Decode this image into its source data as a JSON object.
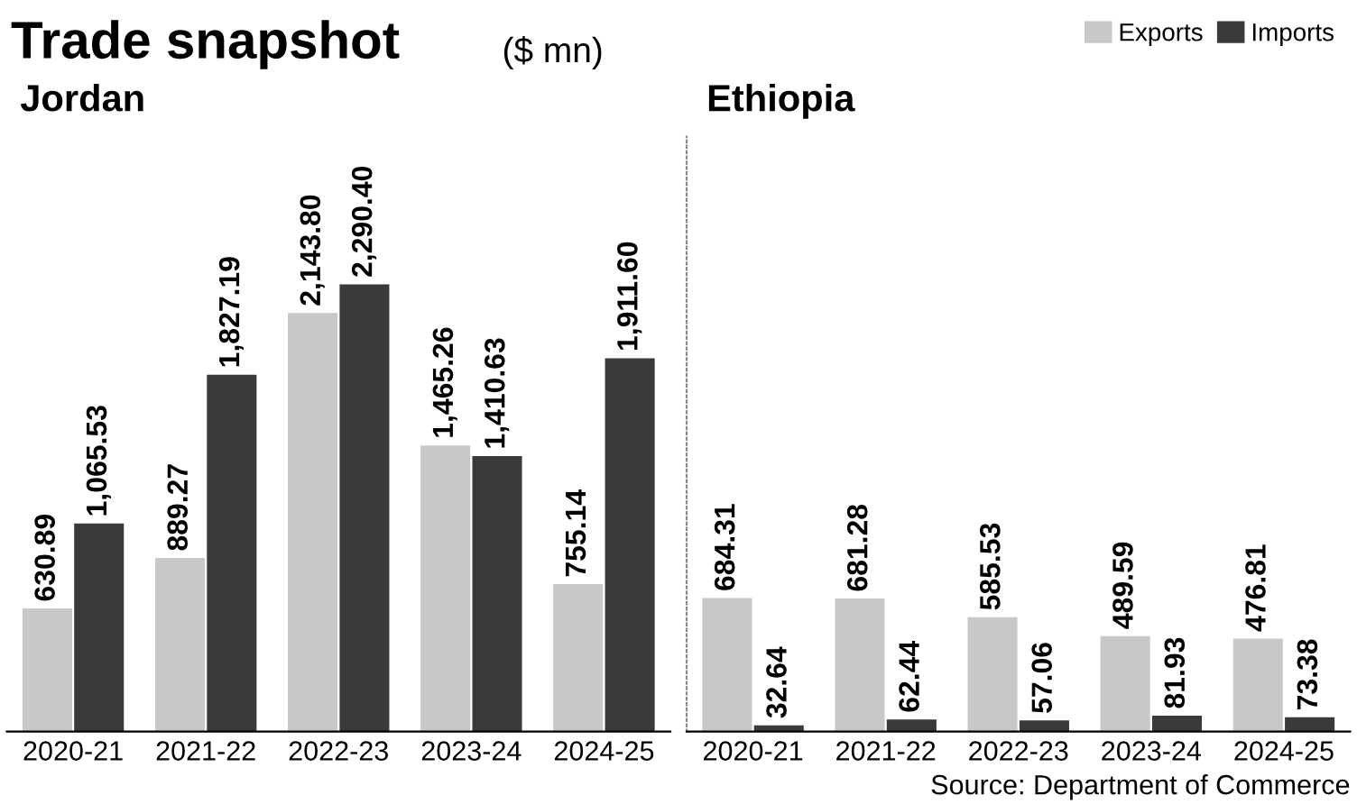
{
  "chart_data": [
    {
      "type": "bar",
      "title": "Trade snapshot",
      "subtitle": "Jordan",
      "annotations": [
        "($ mn)"
      ],
      "categories": [
        "2020-21",
        "2021-22",
        "2022-23",
        "2023-24",
        "2024-25"
      ],
      "series": [
        {
          "name": "Exports",
          "color": "#c8c8c8",
          "values": [
            630.89,
            889.27,
            2143.8,
            1465.26,
            755.14
          ],
          "value_labels": [
            "630.89",
            "889.27",
            "2,143.80",
            "1,465.26",
            "755.14"
          ]
        },
        {
          "name": "Imports",
          "color": "#3a3a3a",
          "values": [
            1065.53,
            1827.19,
            2290.4,
            1410.63,
            1911.6
          ],
          "value_labels": [
            "1,065.53",
            "1,827.19",
            "2,290.40",
            "1,410.63",
            "1,911.60"
          ]
        }
      ],
      "legend": "top right",
      "grid": false
    },
    {
      "type": "bar",
      "subtitle": "Ethiopia",
      "annotations": [
        "Source: Department of Commerce"
      ],
      "categories": [
        "2020-21",
        "2021-22",
        "2022-23",
        "2023-24",
        "2024-25"
      ],
      "series": [
        {
          "color": "#c8c8c8",
          "values": [
            684.31,
            681.28,
            585.53,
            489.59,
            476.81
          ],
          "value_labels": [
            "684.31",
            "681.28",
            "585.53",
            "489.59",
            "476.81"
          ]
        },
        {
          "color": "#3a3a3a",
          "values": [
            32.64,
            62.44,
            57.06,
            81.93,
            73.38
          ],
          "value_labels": [
            "32.64",
            "62.44",
            "57.06",
            "81.93",
            "73.38"
          ]
        }
      ],
      "grid": false
    }
  ]
}
